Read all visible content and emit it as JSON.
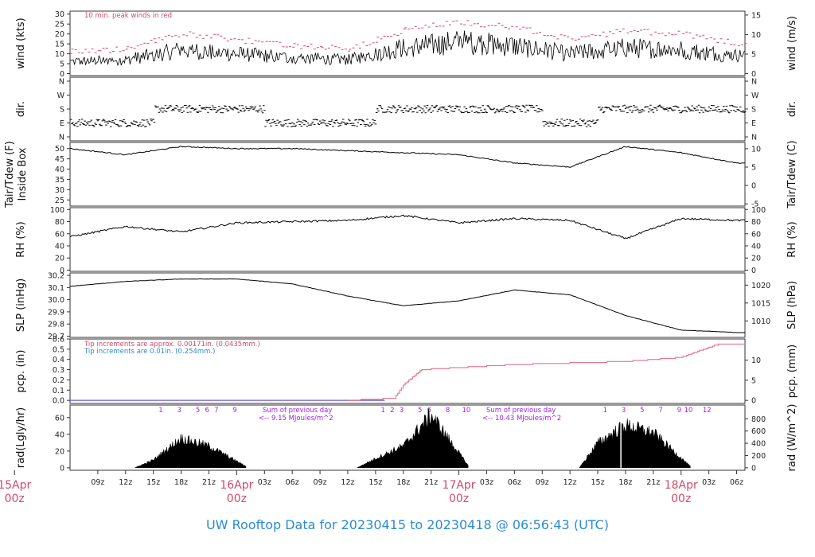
{
  "footer_title": "UW Rooftop Data for 20230415  to  20230418 @ 06:56:43  (UTC)",
  "colors": {
    "peak": "#d24a6a",
    "date": "#d24a6a",
    "footer": "#2b8bd0",
    "pcp_line": "#e2627e",
    "pcp_base": "#6a5acd",
    "hour_marks": "#a020f0",
    "series": "#000000"
  },
  "x_axis": {
    "hour_ticks": [
      "09z",
      "12z",
      "15z",
      "18z",
      "21z",
      "03z",
      "06z",
      "09z",
      "12z",
      "15z",
      "18z",
      "21z",
      "03z",
      "06z",
      "09z",
      "12z",
      "15z",
      "18z",
      "21z",
      "03z",
      "06z"
    ],
    "date_labels": [
      {
        "day": "15Apr",
        "hour": "00z"
      },
      {
        "day": "16Apr",
        "hour": "00z"
      },
      {
        "day": "17Apr",
        "hour": "00z"
      },
      {
        "day": "18Apr",
        "hour": "00z"
      }
    ]
  },
  "panels": [
    {
      "key": "wind",
      "left_label": "wind (kts)",
      "right_label": "wind (m/s)",
      "left_ticks": [
        "30",
        "25",
        "20",
        "15",
        "10",
        "5",
        "0"
      ],
      "right_ticks": [
        "15",
        "10",
        "5",
        "0"
      ],
      "note": "10 min. peak winds in red"
    },
    {
      "key": "dir",
      "left_label": "dir.",
      "right_label": "dir.",
      "left_ticks": [
        "N",
        "W",
        "S",
        "E",
        "N"
      ],
      "right_ticks": [
        "N",
        "W",
        "S",
        "E",
        "N"
      ]
    },
    {
      "key": "temp",
      "left_label": "Tair/Tdew (F)",
      "left_label2": "Inside Box",
      "right_label": "Tair/Tdew (C)",
      "left_ticks": [
        "50",
        "45",
        "40",
        "35",
        "30",
        "25"
      ],
      "right_ticks": [
        "10",
        "5",
        "0",
        "-5"
      ]
    },
    {
      "key": "rh",
      "left_label": "RH (%)",
      "right_label": "RH (%)",
      "left_ticks": [
        "100",
        "80",
        "60",
        "40",
        "20",
        "0"
      ],
      "right_ticks": [
        "100",
        "80",
        "60",
        "40",
        "20",
        "0"
      ]
    },
    {
      "key": "slp",
      "left_label": "SLP (inHg)",
      "right_label": "SLP (hPa)",
      "left_ticks": [
        "30.2",
        "30.1",
        "30.0",
        "29.9",
        "29.8",
        "29.7"
      ],
      "right_ticks": [
        "1020",
        "1015",
        "1010"
      ]
    },
    {
      "key": "pcp",
      "left_label": "pcp. (in)",
      "right_label": "pcp. (mm)",
      "left_ticks": [
        "0.6",
        "0.5",
        "0.4",
        "0.3",
        "0.2",
        "0.1",
        "0.0"
      ],
      "right_ticks": [
        "10",
        "5",
        "0"
      ],
      "note1": "Tip increments are approx. 0.00171in. (0.0435mm.)",
      "note2": "Tip increments are 0.01in. (0.254mm.)"
    },
    {
      "key": "rad",
      "left_label": "rad(Lgly/hr)",
      "right_label": "rad (W/m^2)",
      "left_ticks": [
        "60",
        "40",
        "20",
        "0"
      ],
      "right_ticks": [
        "800",
        "600",
        "400",
        "200",
        "0"
      ],
      "sum1a": "Sum of previous day",
      "sum1b": "<-- 9.15 MJoules/m^2",
      "sum2a": "Sum of previous day",
      "sum2b": "<-- 10.43 MJoules/m^2",
      "hour_marks_day1": [
        "1",
        "3",
        "5",
        "6",
        "7",
        "9"
      ],
      "hour_marks_day2": [
        "1",
        "2",
        "3",
        "5",
        "6",
        "8",
        "10"
      ],
      "hour_marks_day3": [
        "1",
        "3",
        "5",
        "7",
        "9",
        "10",
        "12"
      ]
    }
  ],
  "chart_data": [
    {
      "type": "line",
      "title": "wind",
      "ylabel": "wind (kts)",
      "ylabel_right": "wind (m/s)",
      "ylim": [
        0,
        31
      ],
      "x": [
        "15Apr 06z",
        "15Apr 12z",
        "15Apr 18z",
        "16Apr 00z",
        "16Apr 06z",
        "16Apr 12z",
        "16Apr 18z",
        "17Apr 00z",
        "17Apr 06z",
        "17Apr 12z",
        "17Apr 18z",
        "18Apr 00z",
        "18Apr 06z"
      ],
      "series": [
        {
          "values": [
            6,
            7,
            12,
            10,
            8,
            7,
            13,
            16,
            14,
            10,
            13,
            12,
            9
          ]
        }
      ],
      "annotation": "10 min. peak winds in red"
    },
    {
      "type": "scatter",
      "title": "dir.",
      "ylabel": "dir.",
      "y_categories": [
        "N",
        "E",
        "S",
        "W",
        "N"
      ],
      "x": [
        "15Apr 06z",
        "15Apr 12z",
        "15Apr 18z",
        "16Apr 00z",
        "16Apr 06z",
        "16Apr 12z",
        "16Apr 18z",
        "17Apr 00z",
        "17Apr 06z",
        "17Apr 12z",
        "17Apr 18z",
        "18Apr 00z",
        "18Apr 06z"
      ],
      "series": [
        {
          "values": [
            "E",
            "E",
            "S",
            "S",
            "E",
            "E",
            "S",
            "S",
            "S",
            "E",
            "S",
            "S",
            "S"
          ]
        }
      ]
    },
    {
      "type": "line",
      "title": "Tair/Tdew",
      "ylabel": "Tair/Tdew (F) Inside Box",
      "ylabel_right": "Tair/Tdew (C)",
      "ylim": [
        22,
        53
      ],
      "x": [
        "15Apr 06z",
        "15Apr 12z",
        "15Apr 18z",
        "16Apr 00z",
        "16Apr 06z",
        "16Apr 12z",
        "16Apr 18z",
        "17Apr 00z",
        "17Apr 06z",
        "17Apr 12z",
        "17Apr 18z",
        "18Apr 00z",
        "18Apr 06z"
      ],
      "series": [
        {
          "values": [
            50,
            47,
            51,
            50,
            50,
            49,
            48,
            47,
            43,
            41,
            51,
            48,
            43
          ]
        }
      ]
    },
    {
      "type": "line",
      "title": "RH",
      "ylabel": "RH (%)",
      "ylabel_right": "RH (%)",
      "ylim": [
        0,
        100
      ],
      "x": [
        "15Apr 06z",
        "15Apr 12z",
        "15Apr 18z",
        "16Apr 00z",
        "16Apr 06z",
        "16Apr 12z",
        "16Apr 18z",
        "17Apr 00z",
        "17Apr 06z",
        "17Apr 12z",
        "17Apr 18z",
        "18Apr 00z",
        "18Apr 06z"
      ],
      "series": [
        {
          "values": [
            55,
            72,
            63,
            78,
            80,
            82,
            90,
            78,
            85,
            82,
            52,
            85,
            82
          ]
        }
      ]
    },
    {
      "type": "line",
      "title": "SLP",
      "ylabel": "SLP (inHg)",
      "ylabel_right": "SLP (hPa)",
      "ylim": [
        29.7,
        30.22
      ],
      "x": [
        "15Apr 06z",
        "15Apr 12z",
        "15Apr 18z",
        "16Apr 00z",
        "16Apr 06z",
        "16Apr 12z",
        "16Apr 18z",
        "17Apr 00z",
        "17Apr 06z",
        "17Apr 12z",
        "17Apr 18z",
        "18Apr 00z",
        "18Apr 06z"
      ],
      "series": [
        {
          "values": [
            30.11,
            30.15,
            30.17,
            30.17,
            30.13,
            30.03,
            29.95,
            29.99,
            30.08,
            30.04,
            29.87,
            29.75,
            29.73
          ]
        }
      ]
    },
    {
      "type": "line",
      "title": "pcp.",
      "ylabel": "pcp. (in)",
      "ylabel_right": "pcp. (mm)",
      "ylim": [
        -0.03,
        0.6
      ],
      "x": [
        "15Apr 06z",
        "16Apr 12z",
        "16Apr 17z",
        "16Apr 18z",
        "16Apr 20z",
        "17Apr 00z",
        "17Apr 06z",
        "17Apr 18z",
        "18Apr 00z",
        "18Apr 04z",
        "18Apr 06z"
      ],
      "series": [
        {
          "values": [
            0.0,
            0.0,
            0.02,
            0.15,
            0.3,
            0.32,
            0.35,
            0.38,
            0.42,
            0.55,
            0.55
          ]
        }
      ]
    },
    {
      "type": "area",
      "title": "rad",
      "ylabel": "rad(Lgly/hr)",
      "ylabel_right": "rad (W/m^2)",
      "ylim": [
        0,
        75
      ],
      "x": [
        "15Apr 13z",
        "15Apr 15z",
        "15Apr 18z",
        "15Apr 21z",
        "16Apr 00z",
        "16Apr 13z",
        "16Apr 15z",
        "16Apr 18z",
        "16Apr 21z",
        "17Apr 00z",
        "17Apr 13z",
        "17Apr 15z",
        "17Apr 18z",
        "17Apr 21z",
        "18Apr 00z"
      ],
      "series": [
        {
          "values": [
            0,
            10,
            38,
            28,
            2,
            0,
            12,
            28,
            68,
            3,
            0,
            32,
            55,
            45,
            2
          ]
        }
      ]
    }
  ]
}
